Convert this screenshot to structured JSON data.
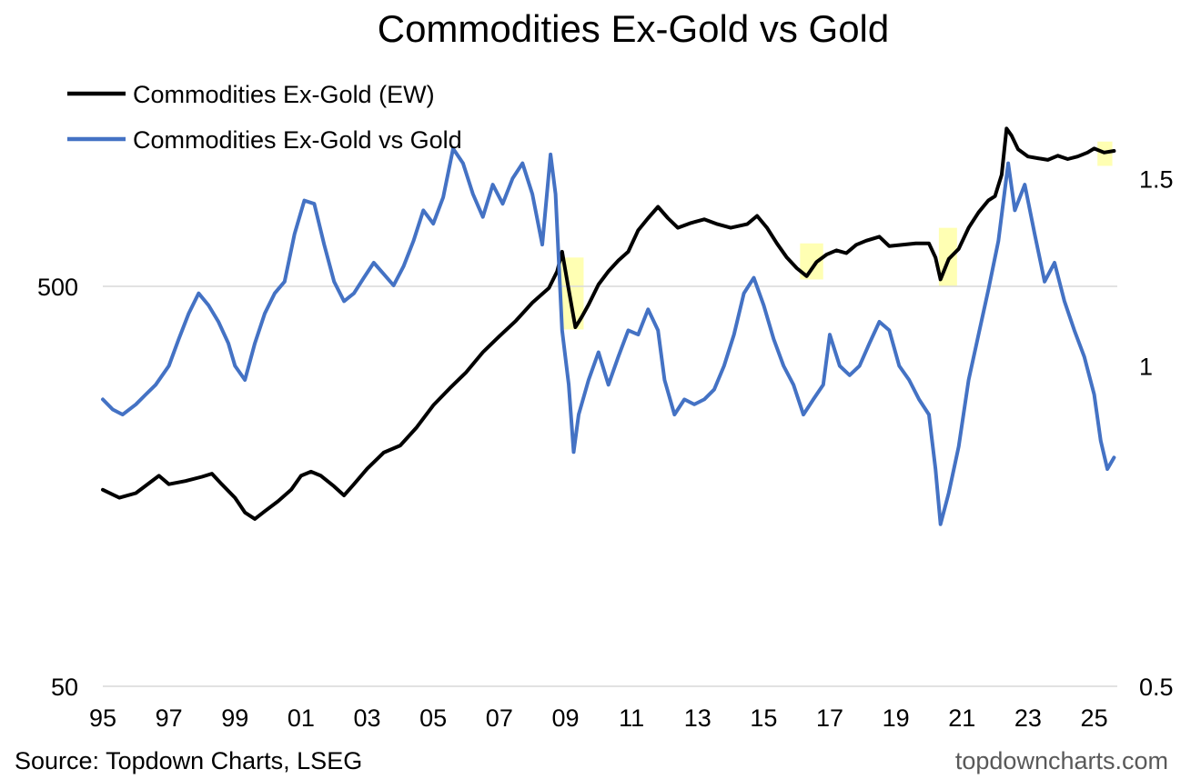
{
  "chart_data": {
    "type": "line",
    "title": "Commodities Ex-Gold vs Gold",
    "x_ticks": [
      "95",
      "97",
      "99",
      "01",
      "03",
      "05",
      "07",
      "09",
      "11",
      "13",
      "15",
      "17",
      "19",
      "21",
      "23",
      "25"
    ],
    "x_range": [
      1995,
      2025.7
    ],
    "y_left": {
      "scale": "log",
      "range": [
        50,
        2000
      ],
      "ticks": [
        "500",
        "50"
      ],
      "tick_values": [
        500,
        50
      ]
    },
    "y_right": {
      "scale": "log",
      "range": [
        0.5,
        2.0
      ],
      "ticks": [
        "1.5",
        "1",
        "0.5"
      ],
      "tick_values": [
        1.5,
        1,
        0.5
      ]
    },
    "gridlines": [
      500
    ],
    "series": [
      {
        "name": "Commodities Ex-Gold (EW)",
        "axis": "left",
        "color": "#000000",
        "points": [
          [
            1995.0,
            155
          ],
          [
            1995.5,
            148
          ],
          [
            1996.0,
            152
          ],
          [
            1996.7,
            168
          ],
          [
            1997.0,
            160
          ],
          [
            1997.5,
            163
          ],
          [
            1998.0,
            167
          ],
          [
            1998.3,
            170
          ],
          [
            1998.6,
            160
          ],
          [
            1999.0,
            148
          ],
          [
            1999.3,
            136
          ],
          [
            1999.6,
            131
          ],
          [
            1999.9,
            137
          ],
          [
            2000.3,
            145
          ],
          [
            2000.7,
            155
          ],
          [
            2001.0,
            168
          ],
          [
            2001.3,
            172
          ],
          [
            2001.6,
            168
          ],
          [
            2002.0,
            158
          ],
          [
            2002.3,
            150
          ],
          [
            2002.6,
            160
          ],
          [
            2003.0,
            175
          ],
          [
            2003.5,
            192
          ],
          [
            2004.0,
            200
          ],
          [
            2004.5,
            222
          ],
          [
            2005.0,
            252
          ],
          [
            2005.5,
            278
          ],
          [
            2006.0,
            305
          ],
          [
            2006.5,
            342
          ],
          [
            2007.0,
            375
          ],
          [
            2007.5,
            410
          ],
          [
            2008.0,
            455
          ],
          [
            2008.5,
            495
          ],
          [
            2008.75,
            545
          ],
          [
            2008.9,
            610
          ],
          [
            2009.1,
            490
          ],
          [
            2009.3,
            395
          ],
          [
            2009.5,
            420
          ],
          [
            2009.7,
            450
          ],
          [
            2010.0,
            505
          ],
          [
            2010.3,
            545
          ],
          [
            2010.6,
            580
          ],
          [
            2010.9,
            610
          ],
          [
            2011.2,
            690
          ],
          [
            2011.5,
            740
          ],
          [
            2011.8,
            790
          ],
          [
            2012.1,
            740
          ],
          [
            2012.4,
            700
          ],
          [
            2012.8,
            720
          ],
          [
            2013.2,
            735
          ],
          [
            2013.6,
            715
          ],
          [
            2014.0,
            700
          ],
          [
            2014.5,
            715
          ],
          [
            2014.8,
            750
          ],
          [
            2015.1,
            700
          ],
          [
            2015.4,
            640
          ],
          [
            2015.7,
            590
          ],
          [
            2016.0,
            555
          ],
          [
            2016.3,
            530
          ],
          [
            2016.6,
            575
          ],
          [
            2016.9,
            600
          ],
          [
            2017.2,
            615
          ],
          [
            2017.5,
            605
          ],
          [
            2017.8,
            635
          ],
          [
            2018.1,
            650
          ],
          [
            2018.5,
            665
          ],
          [
            2018.8,
            630
          ],
          [
            2019.2,
            635
          ],
          [
            2019.6,
            640
          ],
          [
            2020.0,
            640
          ],
          [
            2020.2,
            590
          ],
          [
            2020.35,
            520
          ],
          [
            2020.6,
            585
          ],
          [
            2020.9,
            620
          ],
          [
            2021.2,
            700
          ],
          [
            2021.5,
            765
          ],
          [
            2021.8,
            820
          ],
          [
            2022.0,
            840
          ],
          [
            2022.2,
            950
          ],
          [
            2022.35,
            1240
          ],
          [
            2022.5,
            1190
          ],
          [
            2022.7,
            1100
          ],
          [
            2023.0,
            1055
          ],
          [
            2023.3,
            1045
          ],
          [
            2023.6,
            1035
          ],
          [
            2023.9,
            1060
          ],
          [
            2024.2,
            1040
          ],
          [
            2024.5,
            1055
          ],
          [
            2024.8,
            1080
          ],
          [
            2025.0,
            1105
          ],
          [
            2025.3,
            1080
          ],
          [
            2025.6,
            1090
          ]
        ]
      },
      {
        "name": "Commodities Ex-Gold vs Gold",
        "axis": "right",
        "color": "#4472C4",
        "points": [
          [
            1995.0,
            0.93
          ],
          [
            1995.3,
            0.91
          ],
          [
            1995.6,
            0.9
          ],
          [
            1996.0,
            0.92
          ],
          [
            1996.3,
            0.94
          ],
          [
            1996.6,
            0.96
          ],
          [
            1997.0,
            1.0
          ],
          [
            1997.3,
            1.06
          ],
          [
            1997.6,
            1.12
          ],
          [
            1997.9,
            1.17
          ],
          [
            1998.2,
            1.14
          ],
          [
            1998.5,
            1.1
          ],
          [
            1998.8,
            1.05
          ],
          [
            1999.0,
            1.0
          ],
          [
            1999.3,
            0.97
          ],
          [
            1999.6,
            1.05
          ],
          [
            1999.9,
            1.12
          ],
          [
            2000.2,
            1.17
          ],
          [
            2000.5,
            1.2
          ],
          [
            2000.8,
            1.33
          ],
          [
            2001.1,
            1.43
          ],
          [
            2001.4,
            1.42
          ],
          [
            2001.7,
            1.3
          ],
          [
            2002.0,
            1.2
          ],
          [
            2002.3,
            1.15
          ],
          [
            2002.6,
            1.17
          ],
          [
            2002.9,
            1.21
          ],
          [
            2003.2,
            1.25
          ],
          [
            2003.5,
            1.22
          ],
          [
            2003.8,
            1.19
          ],
          [
            2004.1,
            1.24
          ],
          [
            2004.4,
            1.31
          ],
          [
            2004.7,
            1.4
          ],
          [
            2005.0,
            1.36
          ],
          [
            2005.3,
            1.44
          ],
          [
            2005.6,
            1.6
          ],
          [
            2005.9,
            1.55
          ],
          [
            2006.2,
            1.45
          ],
          [
            2006.5,
            1.38
          ],
          [
            2006.8,
            1.48
          ],
          [
            2007.1,
            1.42
          ],
          [
            2007.4,
            1.5
          ],
          [
            2007.7,
            1.55
          ],
          [
            2008.0,
            1.45
          ],
          [
            2008.3,
            1.3
          ],
          [
            2008.55,
            1.58
          ],
          [
            2008.7,
            1.45
          ],
          [
            2008.9,
            1.08
          ],
          [
            2009.1,
            0.96
          ],
          [
            2009.25,
            0.83
          ],
          [
            2009.4,
            0.9
          ],
          [
            2009.7,
            0.97
          ],
          [
            2010.0,
            1.03
          ],
          [
            2010.3,
            0.96
          ],
          [
            2010.6,
            1.02
          ],
          [
            2010.9,
            1.08
          ],
          [
            2011.2,
            1.07
          ],
          [
            2011.5,
            1.13
          ],
          [
            2011.8,
            1.08
          ],
          [
            2012.0,
            0.97
          ],
          [
            2012.3,
            0.9
          ],
          [
            2012.6,
            0.93
          ],
          [
            2012.9,
            0.92
          ],
          [
            2013.2,
            0.93
          ],
          [
            2013.5,
            0.95
          ],
          [
            2013.8,
            1.0
          ],
          [
            2014.1,
            1.07
          ],
          [
            2014.4,
            1.17
          ],
          [
            2014.7,
            1.21
          ],
          [
            2015.0,
            1.14
          ],
          [
            2015.3,
            1.06
          ],
          [
            2015.6,
            1.0
          ],
          [
            2015.9,
            0.96
          ],
          [
            2016.2,
            0.9
          ],
          [
            2016.5,
            0.93
          ],
          [
            2016.8,
            0.96
          ],
          [
            2017.0,
            1.07
          ],
          [
            2017.3,
            1.0
          ],
          [
            2017.6,
            0.98
          ],
          [
            2017.9,
            1.0
          ],
          [
            2018.2,
            1.05
          ],
          [
            2018.5,
            1.1
          ],
          [
            2018.8,
            1.08
          ],
          [
            2019.1,
            1.0
          ],
          [
            2019.4,
            0.97
          ],
          [
            2019.7,
            0.93
          ],
          [
            2020.0,
            0.9
          ],
          [
            2020.2,
            0.8
          ],
          [
            2020.35,
            0.71
          ],
          [
            2020.6,
            0.76
          ],
          [
            2020.9,
            0.84
          ],
          [
            2021.2,
            0.97
          ],
          [
            2021.5,
            1.07
          ],
          [
            2021.8,
            1.18
          ],
          [
            2022.1,
            1.31
          ],
          [
            2022.4,
            1.55
          ],
          [
            2022.6,
            1.4
          ],
          [
            2022.9,
            1.48
          ],
          [
            2023.2,
            1.33
          ],
          [
            2023.5,
            1.2
          ],
          [
            2023.8,
            1.25
          ],
          [
            2024.1,
            1.15
          ],
          [
            2024.4,
            1.08
          ],
          [
            2024.7,
            1.02
          ],
          [
            2025.0,
            0.94
          ],
          [
            2025.2,
            0.85
          ],
          [
            2025.4,
            0.8
          ],
          [
            2025.6,
            0.82
          ]
        ]
      }
    ],
    "highlights": [
      {
        "start": 2008.85,
        "end": 2009.55,
        "y_left": [
          390,
          590
        ]
      },
      {
        "start": 2016.1,
        "end": 2016.8,
        "y_left": [
          520,
          640
        ]
      },
      {
        "start": 2020.3,
        "end": 2020.85,
        "y_left": [
          500,
          700
        ]
      },
      {
        "start": 2025.1,
        "end": 2025.55,
        "y_left": [
          1000,
          1150
        ]
      }
    ],
    "highlight_color": "#FFFF99",
    "legend_position": "top-left"
  },
  "source": "Source: Topdown Charts, LSEG",
  "brand": "topdowncharts.com"
}
